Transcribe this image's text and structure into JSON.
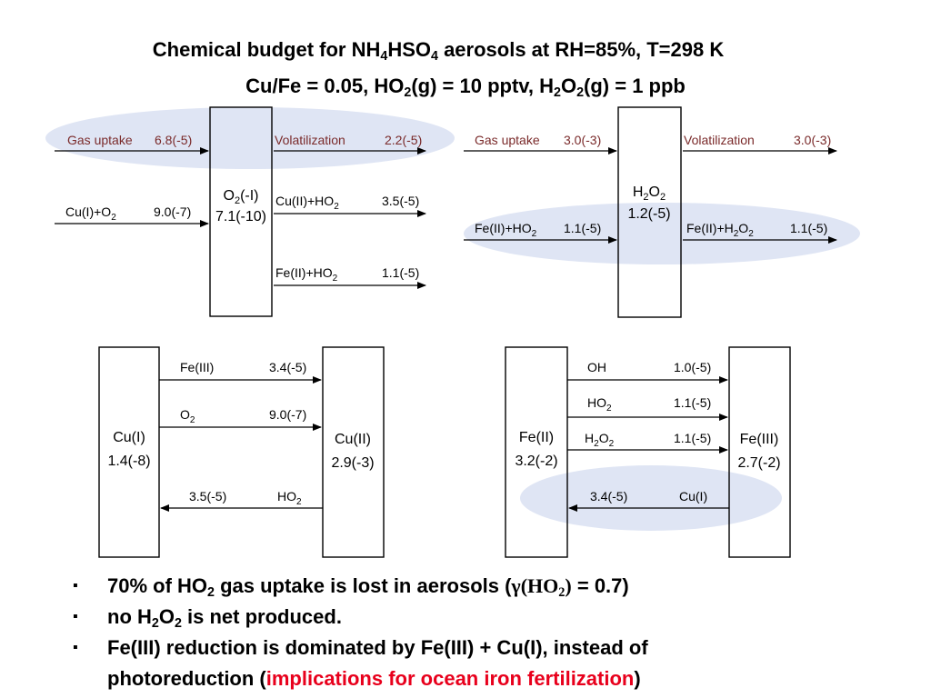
{
  "title": {
    "line1": [
      "Chemical budget for NH",
      "4",
      "HSO",
      "4",
      " aerosols at RH=85%, T=298 K"
    ],
    "line2": [
      "Cu/Fe = 0.05, HO",
      "2",
      "(g) = 10 pptv, H",
      "2",
      "O",
      "2",
      "(g) = 1 ppb"
    ]
  },
  "colors": {
    "highlight": "#dfe5f4",
    "dark_red": "#7a2a2a",
    "accent_red": "#e8001c"
  },
  "panel_o2": {
    "box": [
      "O",
      "2",
      "(-I)"
    ],
    "value": "7.1(-10)",
    "gas_uptake": {
      "label": "Gas uptake",
      "value": "6.8(-5)"
    },
    "volatilization": {
      "label": "Volatilization",
      "value": "2.2(-5)"
    },
    "cu_o2": {
      "label": [
        "Cu(I)+O",
        "2"
      ],
      "value": "9.0(-7)"
    },
    "cu_ho2": {
      "label": [
        "Cu(II)+HO",
        "2"
      ],
      "value": "3.5(-5)"
    },
    "fe_ho2": {
      "label": [
        "Fe(II)+HO",
        "2"
      ],
      "value": "1.1(-5)"
    }
  },
  "panel_h2o2": {
    "box": [
      "H",
      "2",
      "O",
      "2"
    ],
    "value": "1.2(-5)",
    "gas_uptake": {
      "label": "Gas uptake",
      "value": "3.0(-3)"
    },
    "volatilization": {
      "label": "Volatilization",
      "value": "3.0(-3)"
    },
    "fe_ho2": {
      "label": [
        "Fe(II)+HO",
        "2"
      ],
      "value": "1.1(-5)"
    },
    "fe_h2o2": {
      "label": [
        "Fe(II)+H",
        "2",
        "O",
        "2"
      ],
      "value": "1.1(-5)"
    }
  },
  "panel_cu": {
    "left_box": {
      "name": "Cu(I)",
      "value": "1.4(-8)"
    },
    "right_box": {
      "name": "Cu(II)",
      "value": "2.9(-3)"
    },
    "fe3": {
      "label": "Fe(III)",
      "value": "3.4(-5)"
    },
    "o2": {
      "label": [
        "O",
        "2"
      ],
      "value": "9.0(-7)"
    },
    "ho2": {
      "label": [
        "HO",
        "2"
      ],
      "value": "3.5(-5)"
    }
  },
  "panel_fe": {
    "left_box": {
      "name": "Fe(II)",
      "value": "3.2(-2)"
    },
    "right_box": {
      "name": "Fe(III)",
      "value": "2.7(-2)"
    },
    "oh": {
      "label": "OH",
      "value": "1.0(-5)"
    },
    "ho2": {
      "label": [
        "HO",
        "2"
      ],
      "value": "1.1(-5)"
    },
    "h2o2": {
      "label": [
        "H",
        "2",
        "O",
        "2"
      ],
      "value": "1.1(-5)"
    },
    "cu1": {
      "label": "Cu(I)",
      "value": "3.4(-5)"
    }
  },
  "bullets": {
    "marker": "▪",
    "b1": [
      "70% of HO",
      "2",
      " gas uptake is lost in aerosols (",
      "γ(HO",
      "2",
      ")",
      " = 0.7)"
    ],
    "b2": [
      "no H",
      "2",
      "O",
      "2",
      " is net produced."
    ],
    "b3": [
      "Fe(III) reduction is dominated by Fe(III) + Cu(I), instead of"
    ],
    "b4": [
      "photoreduction (",
      "implications for ocean iron fertilization",
      ")"
    ]
  }
}
